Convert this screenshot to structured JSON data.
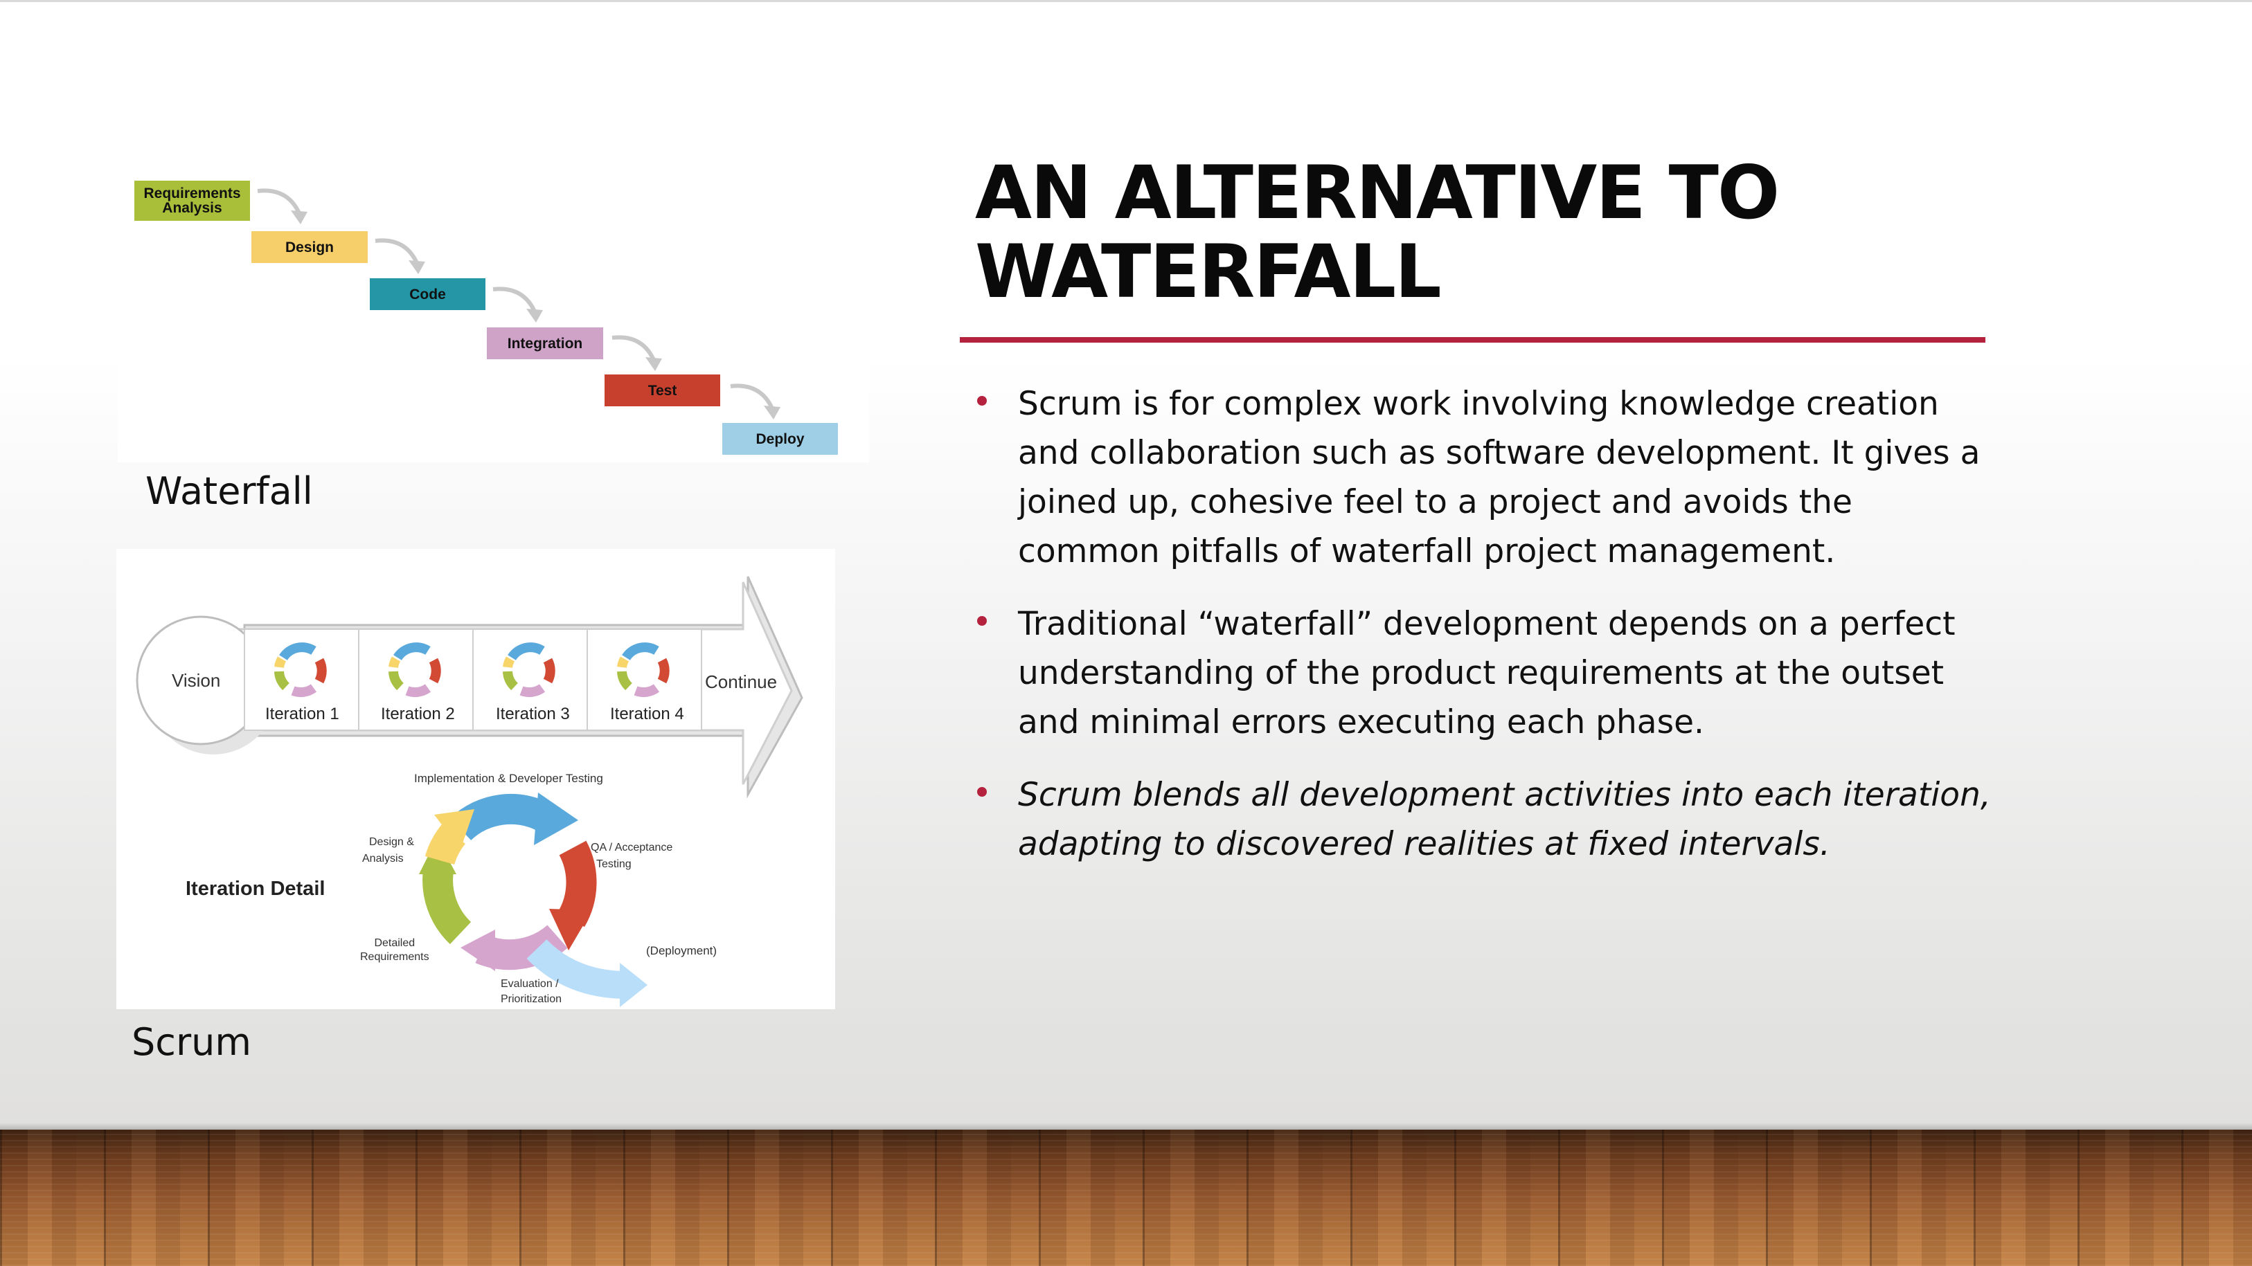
{
  "slide": {
    "title": "AN ALTERNATIVE TO WATERFALL",
    "accent_color": "#b5223e",
    "bullets": [
      {
        "text": "Scrum is for complex work involving knowledge creation and collaboration such as software development. It gives a joined up, cohesive feel to a project and avoids the common pitfalls of waterfall project management.",
        "italic": false
      },
      {
        "text": "Traditional “waterfall” development depends on a perfect understanding of the product requirements at the outset and minimal errors executing each phase.",
        "italic": false
      },
      {
        "text": "Scrum blends all development activities into each iteration, adapting to discovered realities at fixed intervals.",
        "italic": true
      }
    ]
  },
  "waterfall": {
    "caption": "Waterfall",
    "steps": [
      {
        "label": "Requirements Analysis",
        "color": "#a9bf3a"
      },
      {
        "label": "Design",
        "color": "#f6cf6a"
      },
      {
        "label": "Code",
        "color": "#2496a6"
      },
      {
        "label": "Integration",
        "color": "#cfa2c8"
      },
      {
        "label": "Test",
        "color": "#c7402e"
      },
      {
        "label": "Deploy",
        "color": "#9fcfe7"
      }
    ]
  },
  "scrum": {
    "caption": "Scrum",
    "vision": "Vision",
    "continue": "Continue",
    "iterations": [
      "Iteration 1",
      "Iteration 2",
      "Iteration 3",
      "Iteration 4"
    ],
    "detail_title": "Iteration Detail",
    "cycle_labels": {
      "implementation": "Implementation & Developer Testing",
      "qa_1": "QA / Acceptance",
      "qa_2": "Testing",
      "design_1": "Design &",
      "design_2": "Analysis",
      "detailed_1": "Detailed",
      "detailed_2": "Requirements",
      "evaluation_1": "Evaluation /",
      "evaluation_2": "Prioritization",
      "deployment": "(Deployment)"
    },
    "cycle_colors": {
      "blue": "#5aa9dc",
      "red": "#d24a33",
      "pink": "#d6a5cd",
      "green": "#a8c043",
      "yellow": "#f7d56a",
      "light_blue": "#b9defa"
    }
  }
}
